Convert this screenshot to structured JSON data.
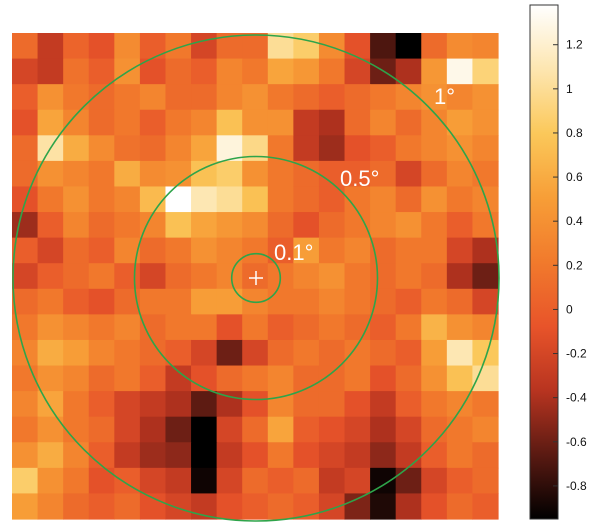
{
  "chart_data": {
    "type": "heatmap",
    "title": "",
    "xlabel": "",
    "ylabel": "",
    "grid": false,
    "legend": "colorbar-right",
    "colormap": [
      "#000000",
      "#5a1a12",
      "#b83420",
      "#e8542a",
      "#f17a2c",
      "#f79e37",
      "#fbc85a",
      "#fde6b0",
      "#ffffff"
    ],
    "color_range": [
      -0.95,
      1.38
    ],
    "colorbar_ticks": [
      "1.2",
      "1",
      "0.8",
      "0.6",
      "0.4",
      "0.2",
      "0",
      "-0.2",
      "-0.4",
      "-0.6",
      "-0.8"
    ],
    "colorbar_tick_values": [
      1.2,
      1.0,
      0.8,
      0.6,
      0.4,
      0.2,
      0.0,
      -0.2,
      -0.4,
      -0.6,
      -0.8
    ],
    "rows": 19,
    "cols": 19,
    "cells": [
      [
        0.1,
        -0.3,
        0.05,
        -0.1,
        0.35,
        0.0,
        0.2,
        -0.2,
        0.1,
        0.1,
        1.0,
        0.85,
        0.35,
        -0.1,
        -0.7,
        -0.95,
        0.1,
        0.35,
        0.3
      ],
      [
        -0.2,
        -0.3,
        0.15,
        0.0,
        0.4,
        -0.1,
        0.1,
        0.0,
        0.3,
        0.2,
        0.55,
        0.45,
        0.2,
        -0.2,
        -0.6,
        -0.4,
        0.45,
        1.3,
        0.9
      ],
      [
        0.0,
        0.4,
        0.2,
        0.1,
        0.2,
        0.3,
        0.1,
        0.1,
        0.3,
        0.4,
        0.2,
        0.1,
        0.0,
        0.1,
        0.2,
        0.3,
        0.4,
        0.3,
        0.4
      ],
      [
        -0.1,
        0.55,
        0.3,
        0.1,
        0.2,
        0.0,
        0.2,
        0.3,
        0.75,
        0.4,
        0.4,
        -0.3,
        -0.4,
        0.1,
        0.3,
        0.1,
        0.3,
        0.5,
        0.4
      ],
      [
        0.1,
        1.05,
        0.6,
        0.35,
        0.15,
        0.1,
        0.3,
        0.55,
        1.25,
        0.95,
        0.2,
        -0.3,
        -0.45,
        -0.1,
        0.0,
        0.2,
        0.3,
        0.4,
        0.3
      ],
      [
        0.1,
        0.4,
        0.3,
        0.2,
        0.6,
        0.35,
        0.4,
        0.75,
        0.85,
        0.4,
        0.2,
        0.1,
        0.0,
        0.0,
        0.1,
        -0.2,
        0.1,
        0.3,
        0.2
      ],
      [
        -0.1,
        0.2,
        0.4,
        0.2,
        0.3,
        0.7,
        1.38,
        1.1,
        1.0,
        0.75,
        0.2,
        0.1,
        0.0,
        0.2,
        0.3,
        0.1,
        0.4,
        0.2,
        0.3
      ],
      [
        -0.45,
        0.0,
        0.3,
        0.1,
        0.2,
        0.3,
        0.75,
        0.55,
        0.45,
        0.35,
        0.1,
        -0.1,
        0.1,
        0.2,
        0.3,
        0.4,
        0.2,
        0.0,
        0.2
      ],
      [
        0.0,
        -0.2,
        0.1,
        0.0,
        0.3,
        0.1,
        0.2,
        0.4,
        0.3,
        0.2,
        0.0,
        0.5,
        0.2,
        0.3,
        0.1,
        0.2,
        0.2,
        -0.2,
        -0.4
      ],
      [
        -0.2,
        0.0,
        0.1,
        0.2,
        0.0,
        -0.2,
        0.1,
        0.2,
        0.3,
        0.1,
        0.2,
        0.3,
        0.4,
        0.2,
        0.1,
        0.2,
        0.1,
        -0.4,
        -0.6
      ],
      [
        0.1,
        0.2,
        0.0,
        -0.1,
        0.1,
        0.2,
        0.2,
        0.5,
        0.5,
        0.3,
        0.2,
        0.2,
        0.3,
        0.2,
        0.1,
        0.0,
        0.2,
        0.1,
        -0.2
      ],
      [
        0.2,
        0.4,
        0.3,
        0.2,
        0.3,
        0.1,
        0.2,
        0.2,
        -0.1,
        0.2,
        0.0,
        0.1,
        0.2,
        0.1,
        0.0,
        0.2,
        0.65,
        0.4,
        0.3
      ],
      [
        0.3,
        0.6,
        0.5,
        0.3,
        0.2,
        0.1,
        0.0,
        -0.2,
        -0.6,
        -0.2,
        0.1,
        0.2,
        0.1,
        0.2,
        0.1,
        0.0,
        0.5,
        1.1,
        0.8
      ],
      [
        0.2,
        0.4,
        0.3,
        0.1,
        0.2,
        0.0,
        -0.3,
        -0.1,
        0.1,
        0.2,
        0.3,
        0.1,
        0.1,
        0.2,
        -0.1,
        0.1,
        0.4,
        0.75,
        1.0
      ],
      [
        0.3,
        0.55,
        0.2,
        0.0,
        -0.2,
        -0.3,
        -0.4,
        -0.65,
        -0.4,
        -0.1,
        0.3,
        0.1,
        0.1,
        -0.1,
        -0.3,
        0.0,
        0.2,
        0.3,
        0.2
      ],
      [
        0.2,
        0.4,
        0.2,
        0.1,
        -0.2,
        -0.4,
        -0.6,
        -0.95,
        -0.2,
        0.1,
        0.55,
        0.0,
        -0.1,
        -0.2,
        -0.4,
        -0.2,
        0.1,
        0.2,
        0.3
      ],
      [
        0.4,
        0.6,
        0.3,
        0.0,
        -0.3,
        -0.45,
        -0.5,
        -0.95,
        -0.3,
        -0.1,
        0.2,
        -0.1,
        -0.2,
        -0.3,
        -0.5,
        -0.3,
        0.0,
        0.2,
        0.1
      ],
      [
        0.85,
        0.4,
        0.2,
        -0.1,
        0.0,
        -0.2,
        -0.3,
        -0.9,
        -0.2,
        0.1,
        0.0,
        0.1,
        -0.3,
        -0.2,
        -0.9,
        -0.6,
        -0.2,
        0.0,
        0.1
      ],
      [
        0.5,
        0.3,
        0.1,
        0.0,
        0.1,
        -0.1,
        -0.2,
        -0.3,
        -0.1,
        0.0,
        0.1,
        0.0,
        -0.2,
        -0.55,
        -0.85,
        -0.4,
        -0.1,
        0.1,
        0.0
      ]
    ],
    "annotations": [
      {
        "text": "1°",
        "radius_deg": 1.0
      },
      {
        "text": "0.5°",
        "radius_deg": 0.5
      },
      {
        "text": "0.1°",
        "radius_deg": 0.1
      }
    ],
    "center_marker": "plus-icon",
    "ring_color": "#2ea44a"
  }
}
